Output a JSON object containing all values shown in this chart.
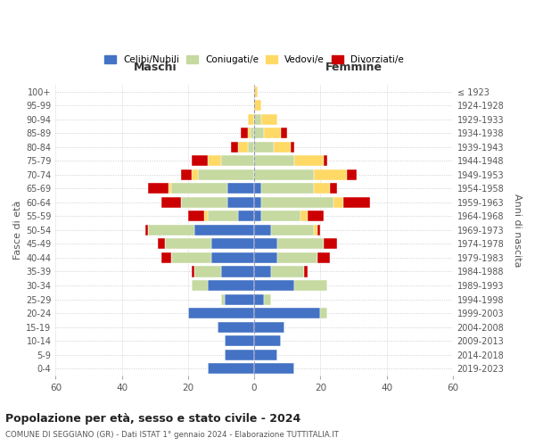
{
  "age_groups": [
    "0-4",
    "5-9",
    "10-14",
    "15-19",
    "20-24",
    "25-29",
    "30-34",
    "35-39",
    "40-44",
    "45-49",
    "50-54",
    "55-59",
    "60-64",
    "65-69",
    "70-74",
    "75-79",
    "80-84",
    "85-89",
    "90-94",
    "95-99",
    "100+"
  ],
  "birth_years": [
    "2019-2023",
    "2014-2018",
    "2009-2013",
    "2004-2008",
    "1999-2003",
    "1994-1998",
    "1989-1993",
    "1984-1988",
    "1979-1983",
    "1974-1978",
    "1969-1973",
    "1964-1968",
    "1959-1963",
    "1954-1958",
    "1949-1953",
    "1944-1948",
    "1939-1943",
    "1934-1938",
    "1929-1933",
    "1924-1928",
    "≤ 1923"
  ],
  "colors": {
    "celibi": "#4472c4",
    "coniugati": "#c5d9a0",
    "vedovi": "#ffd966",
    "divorziati": "#cc0000"
  },
  "maschi": {
    "celibi": [
      14,
      9,
      9,
      11,
      20,
      9,
      14,
      10,
      13,
      13,
      18,
      5,
      8,
      8,
      0,
      0,
      0,
      0,
      0,
      0,
      0
    ],
    "coniugati": [
      0,
      0,
      0,
      0,
      0,
      1,
      5,
      8,
      12,
      14,
      14,
      9,
      14,
      17,
      17,
      10,
      2,
      1,
      0,
      0,
      0
    ],
    "vedovi": [
      0,
      0,
      0,
      0,
      0,
      0,
      0,
      0,
      0,
      0,
      0,
      1,
      0,
      1,
      2,
      4,
      3,
      1,
      2,
      0,
      0
    ],
    "divorziati": [
      0,
      0,
      0,
      0,
      0,
      0,
      0,
      1,
      3,
      2,
      1,
      5,
      6,
      6,
      3,
      5,
      2,
      2,
      0,
      0,
      0
    ]
  },
  "femmine": {
    "celibi": [
      12,
      7,
      8,
      9,
      20,
      3,
      12,
      5,
      7,
      7,
      5,
      2,
      2,
      2,
      0,
      0,
      0,
      0,
      0,
      0,
      0
    ],
    "coniugati": [
      0,
      0,
      0,
      0,
      2,
      2,
      10,
      10,
      12,
      14,
      13,
      12,
      22,
      16,
      18,
      12,
      6,
      3,
      2,
      0,
      0
    ],
    "vedovi": [
      0,
      0,
      0,
      0,
      0,
      0,
      0,
      0,
      0,
      0,
      1,
      2,
      3,
      5,
      10,
      9,
      5,
      5,
      5,
      2,
      1
    ],
    "divorziati": [
      0,
      0,
      0,
      0,
      0,
      0,
      0,
      1,
      4,
      4,
      1,
      5,
      8,
      2,
      3,
      1,
      1,
      2,
      0,
      0,
      0
    ]
  },
  "xlim": 60,
  "title_main": "Popolazione per età, sesso e stato civile - 2024",
  "title_sub": "COMUNE DI SEGGIANO (GR) - Dati ISTAT 1° gennaio 2024 - Elaborazione TUTTITALIA.IT",
  "xlabel_left": "Maschi",
  "xlabel_right": "Femmine",
  "ylabel_left": "Fasce di età",
  "ylabel_right": "Anni di nascita",
  "legend_labels": [
    "Celibi/Nubili",
    "Coniugati/e",
    "Vedovi/e",
    "Divorziati/e"
  ],
  "bg_color": "#ffffff",
  "grid_color": "#cccccc"
}
